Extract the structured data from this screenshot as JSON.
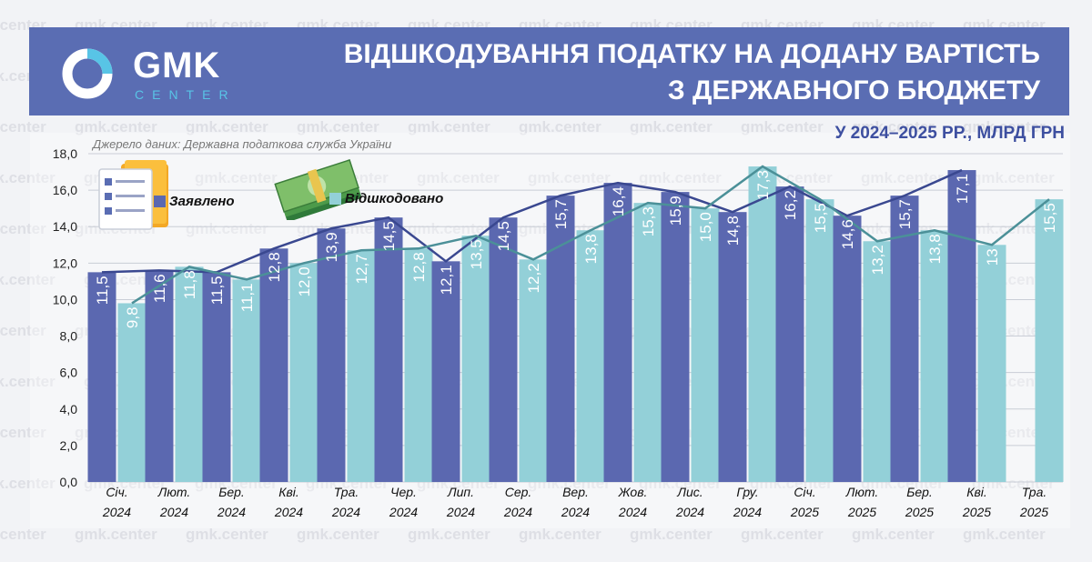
{
  "header": {
    "logo_main": "GMK",
    "logo_sub": "CENTER",
    "title_line1": "ВІДШКОДУВАННЯ ПОДАТКУ НА ДОДАНУ ВАРТІСТЬ",
    "title_line2": "З ДЕРЖАВНОГО БЮДЖЕТУ",
    "subtitle": "У 2024–2025 РР., МЛРД ГРН"
  },
  "watermark_text": "gmk.center",
  "source": "Джерело даних: Державна податкова служба України",
  "colors": {
    "header_bg": "#5a6db3",
    "declared": "#5b68b0",
    "refunded": "#93d0d8",
    "declared_line": "#3a4890",
    "refunded_line": "#4b9098",
    "logo_accent": "#58c4e6"
  },
  "chart_data": {
    "type": "bar",
    "categories": [
      [
        "Січ.",
        "2024"
      ],
      [
        "Лют.",
        "2024"
      ],
      [
        "Бер.",
        "2024"
      ],
      [
        "Кві.",
        "2024"
      ],
      [
        "Тра.",
        "2024"
      ],
      [
        "Чер.",
        "2024"
      ],
      [
        "Лип.",
        "2024"
      ],
      [
        "Сер.",
        "2024"
      ],
      [
        "Вер.",
        "2024"
      ],
      [
        "Жов.",
        "2024"
      ],
      [
        "Лис.",
        "2024"
      ],
      [
        "Гру.",
        "2024"
      ],
      [
        "Січ.",
        "2025"
      ],
      [
        "Лют.",
        "2025"
      ],
      [
        "Бер.",
        "2025"
      ],
      [
        "Кві.",
        "2025"
      ],
      [
        "Тра.",
        "2025"
      ]
    ],
    "series": [
      {
        "name": "Заявлено",
        "values": [
          11.5,
          11.6,
          11.5,
          12.8,
          13.9,
          14.5,
          12.1,
          14.5,
          15.7,
          16.4,
          15.9,
          14.8,
          16.2,
          14.6,
          15.7,
          17.1,
          null
        ],
        "labels": [
          "11,5",
          "11,6",
          "11,5",
          "12,8",
          "13,9",
          "14,5",
          "12,1",
          "14,5",
          "15,7",
          "16,4",
          "15,9",
          "14,8",
          "16,2",
          "14,6",
          "15,7",
          "17,1",
          ""
        ]
      },
      {
        "name": "Відшкодовано",
        "values": [
          9.8,
          11.8,
          11.1,
          12.0,
          12.7,
          12.8,
          13.5,
          12.2,
          13.8,
          15.3,
          15.0,
          17.3,
          15.5,
          13.2,
          13.8,
          13.0,
          15.5
        ],
        "labels": [
          "9,8",
          "11,8",
          "11,1",
          "12,0",
          "12,7",
          "12,8",
          "13,5",
          "12,2",
          "13,8",
          "15,3",
          "15,0",
          "17,3",
          "15,5",
          "13,2",
          "13,8",
          "13",
          "15,5"
        ]
      }
    ],
    "ylim": [
      0,
      18
    ],
    "yticks": [
      "0,0",
      "2,0",
      "4,0",
      "6,0",
      "8,0",
      "10,0",
      "12,0",
      "14,0",
      "16,0",
      "18,0"
    ],
    "grid": true,
    "legend_position": "top-left"
  }
}
